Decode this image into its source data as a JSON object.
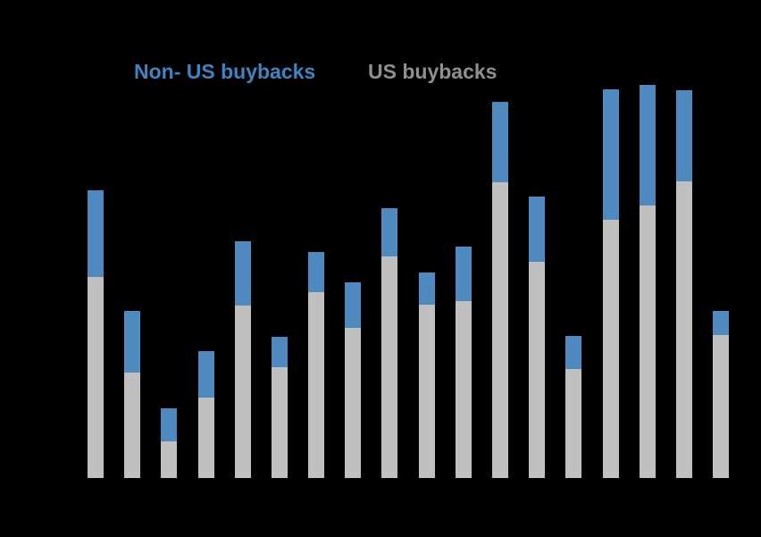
{
  "background": "#000000",
  "legend": {
    "items": [
      {
        "label": "Non- US buybacks",
        "color": "#3d85c1"
      },
      {
        "label": "US buybacks",
        "color": "#8f8f8f"
      }
    ]
  },
  "chart_data": {
    "type": "bar",
    "stacked": true,
    "note": "Axis title, tick labels and any headings are not legible in the screenshot (black text on black background). Values below are bar-segment heights measured in pixels; no numeric value axis is visible.",
    "units": "px",
    "n_bars": 18,
    "series": [
      {
        "name": "US buybacks",
        "color": "#c0c0c0",
        "stack_position": "bottom",
        "values": [
          225,
          118,
          41,
          90,
          193,
          124,
          208,
          168,
          248,
          194,
          198,
          331,
          242,
          122,
          289,
          305,
          332,
          160
        ]
      },
      {
        "name": "Non- US buybacks",
        "color": "#4e8ac0",
        "stack_position": "top",
        "values": [
          97,
          69,
          37,
          52,
          72,
          34,
          45,
          51,
          54,
          36,
          61,
          90,
          73,
          37,
          146,
          135,
          102,
          27
        ]
      }
    ],
    "legend_position": "top",
    "grid": false,
    "axis_labels_visible": false
  }
}
